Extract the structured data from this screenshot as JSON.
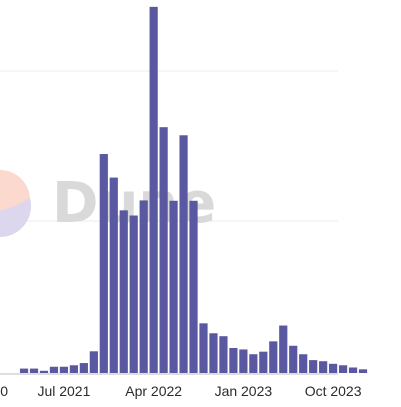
{
  "watermark": {
    "text": "Dune",
    "colors": [
      "#fcd9cf",
      "#dcd7ee"
    ]
  },
  "chart_data": {
    "type": "bar",
    "color": "#5a58a0",
    "grid": true,
    "ylim": [
      0,
      1.0
    ],
    "series": [
      {
        "values": [
          0.0,
          0.0,
          0.012,
          0.012,
          0.006,
          0.017,
          0.017,
          0.021,
          0.027,
          0.059,
          0.595,
          0.531,
          0.442,
          0.428,
          0.469,
          0.995,
          0.668,
          0.468,
          0.646,
          0.468,
          0.135,
          0.108,
          0.1,
          0.068,
          0.064,
          0.051,
          0.058,
          0.086,
          0.129,
          0.074,
          0.051,
          0.035,
          0.032,
          0.025,
          0.021,
          0.015,
          0.01
        ]
      }
    ],
    "x_tick_labels": [
      {
        "label": "0",
        "index": 0
      },
      {
        "label": "Jul 2021",
        "index": 6
      },
      {
        "label": "Apr 2022",
        "index": 15
      },
      {
        "label": "Jan 2023",
        "index": 24
      },
      {
        "label": "Oct 2023",
        "index": 33
      }
    ]
  }
}
